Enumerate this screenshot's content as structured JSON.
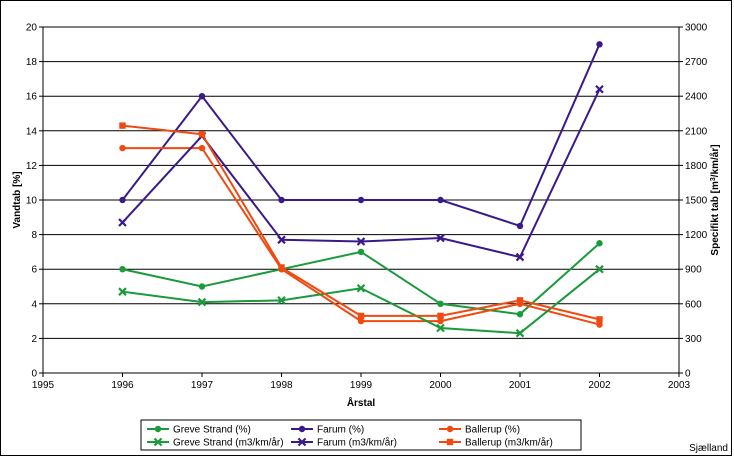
{
  "chart_data": {
    "type": "line",
    "xlabel": "Årstal",
    "ylabel_left": "Vandtab [%]",
    "ylabel_right_parts": [
      "Specifikt tab [m",
      "3",
      "/km/år]"
    ],
    "x_ticks": [
      1995,
      1996,
      1997,
      1998,
      1999,
      2000,
      2001,
      2002,
      2003
    ],
    "y_left_ticks": [
      0,
      2,
      4,
      6,
      8,
      10,
      12,
      14,
      16,
      18,
      20
    ],
    "y_right_ticks": [
      0,
      300,
      600,
      900,
      1200,
      1500,
      1800,
      2100,
      2400,
      2700,
      3000
    ],
    "xlim": [
      1995,
      2003
    ],
    "ylim_left": [
      0,
      20
    ],
    "ylim_right": [
      0,
      3000
    ],
    "grid": "horizontal",
    "legend_position": "bottom",
    "x": [
      1996,
      1997,
      1998,
      1999,
      2000,
      2001,
      2002
    ],
    "series": [
      {
        "name": "Greve Strand (%)",
        "axis": "left",
        "color": "#1a9a3a",
        "marker": "circle",
        "values": [
          6.0,
          5.0,
          6.0,
          7.0,
          4.0,
          3.4,
          7.5
        ]
      },
      {
        "name": "Farum (%)",
        "axis": "left",
        "color": "#3a1a8a",
        "marker": "circle",
        "values": [
          10.0,
          16.0,
          10.0,
          10.0,
          10.0,
          8.5,
          19.0
        ]
      },
      {
        "name": "Ballerup (%)",
        "axis": "left",
        "color": "#f04a10",
        "marker": "circle",
        "values": [
          13.0,
          13.0,
          6.0,
          3.0,
          3.0,
          4.0,
          2.8
        ]
      },
      {
        "name": "Greve Strand (m3/km/år)",
        "axis": "right",
        "color": "#1a9a3a",
        "marker": "x",
        "values": [
          705,
          615,
          630,
          735,
          390,
          345,
          900
        ]
      },
      {
        "name": "Farum (m3/km/år)",
        "axis": "right",
        "color": "#3a1a8a",
        "marker": "x",
        "values": [
          1305,
          2055,
          1155,
          1140,
          1170,
          1005,
          2460
        ]
      },
      {
        "name": "Ballerup (m3/km/år)",
        "axis": "right",
        "color": "#f04a10",
        "marker": "square",
        "values": [
          2145,
          2070,
          915,
          495,
          495,
          630,
          465
        ]
      }
    ]
  },
  "corner_label": "Sjælland"
}
